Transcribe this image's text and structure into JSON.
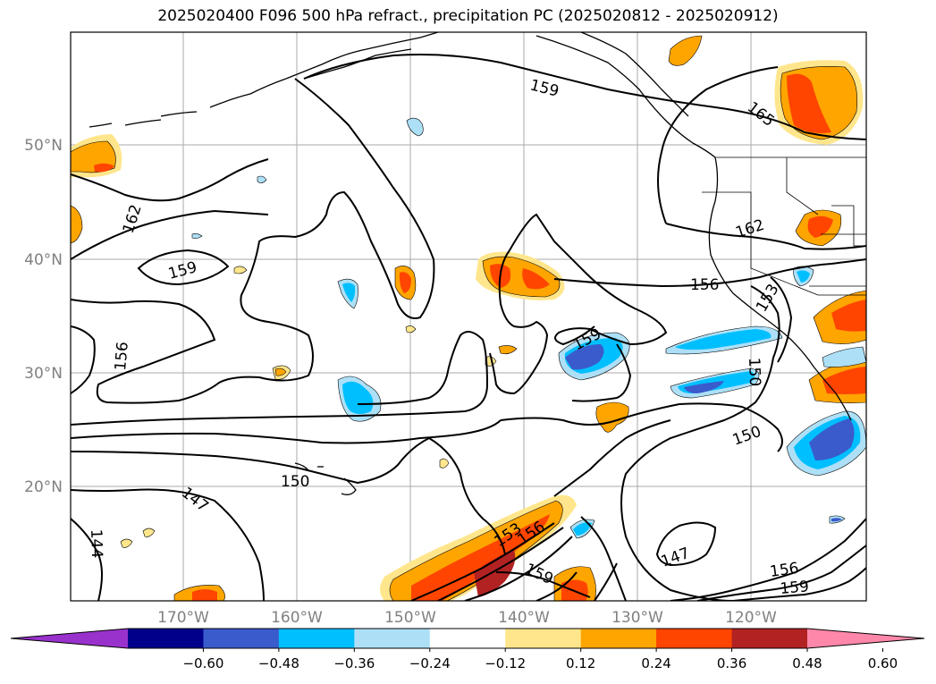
{
  "title": "2025020400 F096 500 hPa refract., precipitation PC (2025020812 - 2025020912)",
  "lat_labels": [
    "50°N",
    "40°N",
    "30°N",
    "20°N"
  ],
  "lon_labels": [
    "170°W",
    "160°W",
    "150°W",
    "140°W",
    "130°W",
    "120°W"
  ],
  "contour_labels": [
    "159",
    "165",
    "162",
    "159",
    "156",
    "153",
    "162",
    "159",
    "156",
    "150",
    "150",
    "150",
    "147",
    "144",
    "153",
    "156",
    "159",
    "147",
    "156",
    "159"
  ],
  "colorbar": {
    "tick_labels": [
      "−0.60",
      "−0.48",
      "−0.36",
      "−0.24",
      "−0.12",
      "0.12",
      "0.24",
      "0.36",
      "0.48",
      "0.60"
    ],
    "colors": [
      "#9932CC",
      "#00008B",
      "#3A5BCC",
      "#00BFFF",
      "#ADE0F7",
      "#FFFFFF",
      "#FFE68C",
      "#FFA500",
      "#FF4500",
      "#B22222",
      "#FF88AA"
    ]
  }
}
